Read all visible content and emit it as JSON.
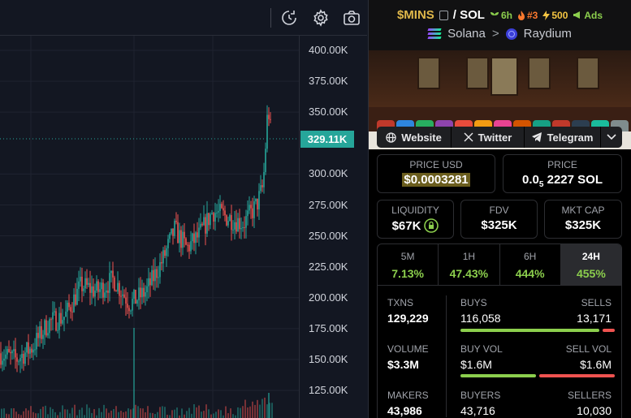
{
  "chart": {
    "y_ticks": [
      "400.00K",
      "375.00K",
      "350.00K",
      "300.00K",
      "275.00K",
      "250.00K",
      "225.00K",
      "200.00K",
      "175.00K",
      "150.00K",
      "125.00K"
    ],
    "last_price": "329.11K",
    "up_color": "#26a69a",
    "down_color": "#ef5350"
  },
  "header": {
    "symbol": "$MINS",
    "quote": "/ SOL",
    "age": "6h",
    "rank": "#3",
    "boosts": "500",
    "ads": "Ads",
    "chain": "Solana",
    "dex": "Raydium",
    "chevron": ">"
  },
  "links": {
    "website": "Website",
    "twitter": "Twitter",
    "telegram": "Telegram"
  },
  "price": {
    "usd_label": "PRICE USD",
    "usd_value": "$0.0003281",
    "sol_label": "PRICE",
    "sol_prefix": "0.0",
    "sol_sub": "5",
    "sol_value": "2227 SOL"
  },
  "metrics": {
    "liquidity_label": "LIQUIDITY",
    "liquidity": "$67K",
    "fdv_label": "FDV",
    "fdv": "$325K",
    "mcap_label": "MKT CAP",
    "mcap": "$325K"
  },
  "timeframes": [
    {
      "label": "5M",
      "value": "7.13%"
    },
    {
      "label": "1H",
      "value": "47.43%"
    },
    {
      "label": "6H",
      "value": "444%"
    },
    {
      "label": "24H",
      "value": "455%"
    }
  ],
  "stats": {
    "txns_label": "TXNS",
    "txns": "129,229",
    "buys_label": "BUYS",
    "buys": "116,058",
    "sells_label": "SELLS",
    "sells": "13,171",
    "volume_label": "VOLUME",
    "volume": "$3.3M",
    "buy_vol_label": "BUY VOL",
    "buy_vol": "$1.6M",
    "sell_vol_label": "SELL VOL",
    "sell_vol": "$1.6M",
    "makers_label": "MAKERS",
    "makers": "43,986",
    "buyers_label": "BUYERS",
    "buyers": "43,716",
    "sellers_label": "SELLERS",
    "sellers": "10,030",
    "buy_ratio": 0.898,
    "buy_vol_ratio": 0.5
  },
  "colors": {
    "accent_gold": "#e0b84a",
    "green": "#8ccf4d",
    "red": "#ef5350",
    "panel_bg": "#000000"
  }
}
